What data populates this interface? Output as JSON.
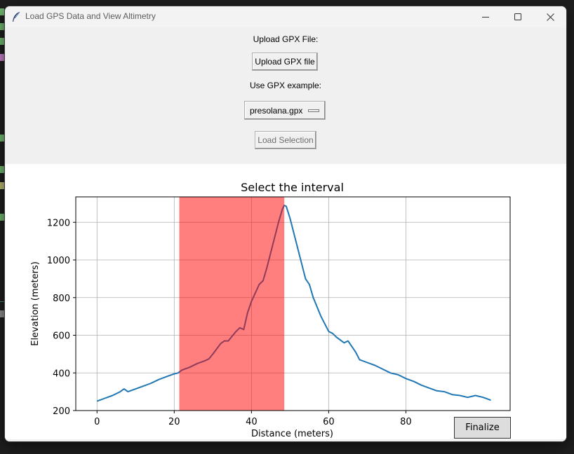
{
  "window": {
    "title": "Load GPS Data and View Altimetry"
  },
  "controls": {
    "upload_label": "Upload GPX File:",
    "upload_button": "Upload GPX file",
    "example_label": "Use GPX example:",
    "example_selected": "presolana.gpx",
    "load_button": "Load Selection"
  },
  "finalize_button": "Finalize",
  "colors": {
    "line": "#1f77b4",
    "selection": "#ff7f7f",
    "selected_line": "#8c3a5a"
  },
  "chart_data": {
    "type": "line",
    "title": "Select the interval",
    "xlabel": "Distance (meters)",
    "ylabel": "Elevation (meters)",
    "xlim": [
      -5.5,
      107
    ],
    "ylim": [
      200,
      1335
    ],
    "xticks": [
      0,
      20,
      40,
      60,
      80
    ],
    "yticks": [
      200,
      400,
      600,
      800,
      1000,
      1200
    ],
    "grid": true,
    "selection_interval": [
      21.3,
      48.5
    ],
    "series": [
      {
        "x": [
          0,
          2,
          4,
          6,
          7,
          8,
          10,
          12,
          14,
          16,
          18,
          20,
          21,
          22,
          24,
          26,
          28,
          29,
          30,
          32,
          33,
          34,
          36,
          37,
          38,
          39,
          40,
          42,
          43,
          44,
          45,
          46,
          47,
          48,
          48.5,
          49,
          50,
          52,
          54,
          55,
          56,
          58,
          60,
          61,
          62,
          64,
          65,
          66,
          67,
          68,
          70,
          72,
          74,
          76,
          78,
          80,
          82,
          84,
          86,
          88,
          90,
          92,
          94,
          96,
          98,
          100,
          102
        ],
        "y": [
          250,
          265,
          280,
          300,
          315,
          300,
          315,
          330,
          345,
          365,
          380,
          395,
          400,
          415,
          430,
          450,
          465,
          475,
          500,
          555,
          570,
          570,
          620,
          640,
          630,
          720,
          780,
          870,
          890,
          960,
          1040,
          1120,
          1200,
          1270,
          1290,
          1285,
          1220,
          1060,
          900,
          870,
          800,
          700,
          620,
          610,
          590,
          560,
          570,
          540,
          510,
          470,
          455,
          440,
          420,
          400,
          390,
          370,
          355,
          335,
          320,
          305,
          300,
          285,
          280,
          270,
          280,
          270,
          255
        ]
      }
    ]
  }
}
